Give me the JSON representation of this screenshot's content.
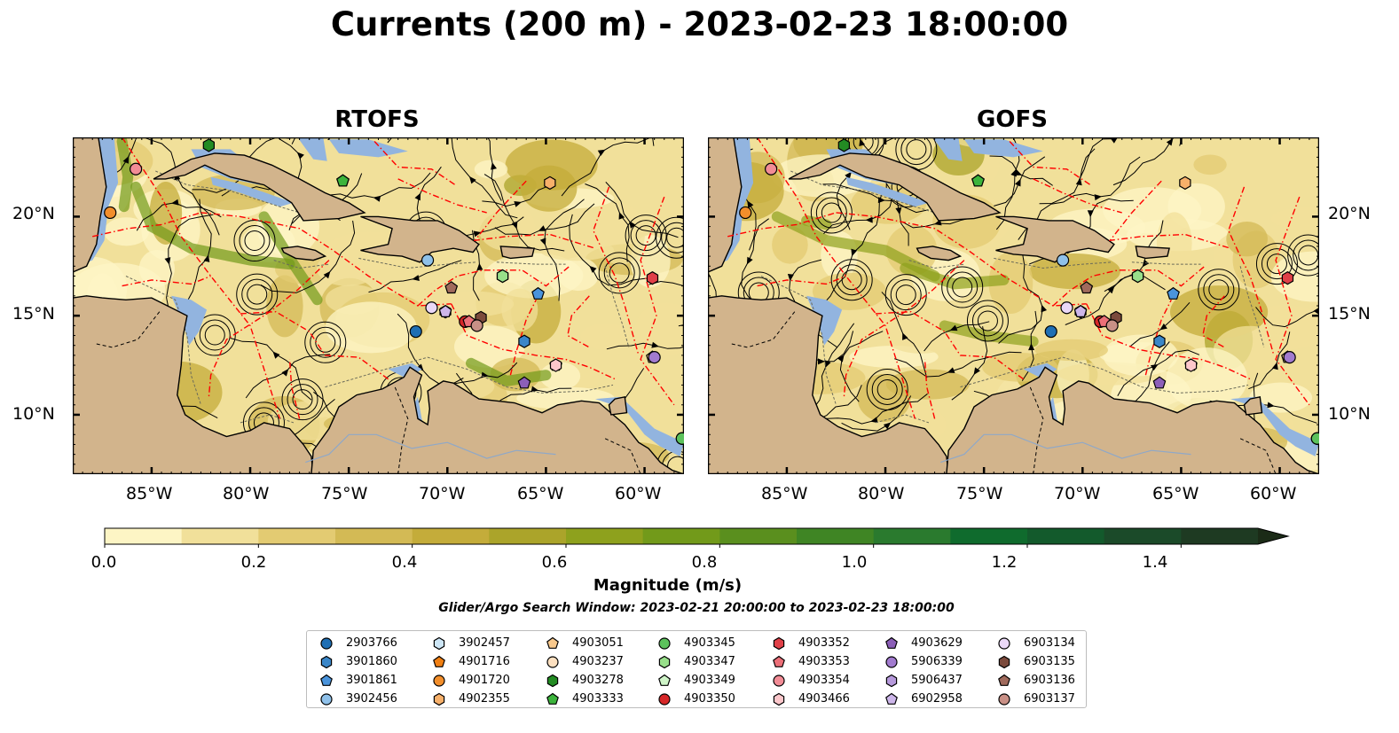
{
  "title": "Currents (200 m) - 2023-02-23 18:00:00",
  "panels": [
    {
      "title": "RTOFS"
    },
    {
      "title": "GOFS"
    }
  ],
  "map": {
    "lon_range": [
      -89,
      -58
    ],
    "lat_range": [
      7,
      24
    ],
    "lon_ticks": [
      "85°W",
      "80°W",
      "75°W",
      "70°W",
      "65°W",
      "60°W"
    ],
    "lat_ticks": [
      "20°N",
      "15°N",
      "10°N"
    ],
    "land_color": "#d2b48c",
    "ocean_shelf_color": "#92b4df",
    "eez_color": "#ff0000",
    "streamline_color": "#000000"
  },
  "colorbar": {
    "title": "Magnitude (m/s)",
    "range": [
      0.0,
      1.5
    ],
    "extend": "max",
    "tick_labels": [
      "0.0",
      "0.2",
      "0.4",
      "0.6",
      "0.8",
      "1.0",
      "1.2",
      "1.4"
    ],
    "colors": [
      "#fdf5c5",
      "#f1e09a",
      "#e3cb72",
      "#d3ba55",
      "#c4ac3a",
      "#aba42a",
      "#8ea11d",
      "#729a1a",
      "#5a8f1e",
      "#3f8524",
      "#2a7a2e",
      "#0f6b2d",
      "#135a2c",
      "#1b4a29",
      "#1e3a22",
      "#1b2b17"
    ]
  },
  "search_window": "Glider/Argo Search Window: 2023-02-21 20:00:00 to 2023-02-23 18:00:00",
  "legend": [
    {
      "id": "2903766",
      "marker": "circle",
      "color": "#1f6fb4"
    },
    {
      "id": "3901860",
      "marker": "hexagon",
      "color": "#3a86c8"
    },
    {
      "id": "3901861",
      "marker": "pentagon",
      "color": "#4a94dc"
    },
    {
      "id": "3902456",
      "marker": "circle",
      "color": "#8fc1ea"
    },
    {
      "id": "3902457",
      "marker": "hexagon",
      "color": "#cde6f6"
    },
    {
      "id": "4901716",
      "marker": "pentagon",
      "color": "#f07f12"
    },
    {
      "id": "4901720",
      "marker": "circle",
      "color": "#f28e2b"
    },
    {
      "id": "4902355",
      "marker": "hexagon",
      "color": "#f7b06a"
    },
    {
      "id": "4903051",
      "marker": "pentagon",
      "color": "#f9c98d"
    },
    {
      "id": "4903237",
      "marker": "circle",
      "color": "#fde0c0"
    },
    {
      "id": "4903278",
      "marker": "hexagon",
      "color": "#238b23"
    },
    {
      "id": "4903333",
      "marker": "pentagon",
      "color": "#3cb43c"
    },
    {
      "id": "4903345",
      "marker": "circle",
      "color": "#5cc25c"
    },
    {
      "id": "4903347",
      "marker": "hexagon",
      "color": "#98df8a"
    },
    {
      "id": "4903349",
      "marker": "pentagon",
      "color": "#cff5c8"
    },
    {
      "id": "4903350",
      "marker": "circle",
      "color": "#d62728"
    },
    {
      "id": "4903352",
      "marker": "hexagon",
      "color": "#e04048"
    },
    {
      "id": "4903353",
      "marker": "pentagon",
      "color": "#ec6f78"
    },
    {
      "id": "4903354",
      "marker": "circle",
      "color": "#f28c96"
    },
    {
      "id": "4903466",
      "marker": "hexagon",
      "color": "#fcc7cb"
    },
    {
      "id": "4903629",
      "marker": "pentagon",
      "color": "#8c5fb8"
    },
    {
      "id": "5906339",
      "marker": "circle",
      "color": "#a27bcf"
    },
    {
      "id": "5906437",
      "marker": "hexagon",
      "color": "#b699db"
    },
    {
      "id": "6902958",
      "marker": "pentagon",
      "color": "#cdb6ea"
    },
    {
      "id": "6903134",
      "marker": "circle",
      "color": "#ead8f7"
    },
    {
      "id": "6903135",
      "marker": "hexagon",
      "color": "#7b4a3c"
    },
    {
      "id": "6903136",
      "marker": "pentagon",
      "color": "#a06a5c"
    },
    {
      "id": "6903137",
      "marker": "circle",
      "color": "#c99086"
    }
  ],
  "floats": {
    "rtofs": [
      {
        "id": "2903766",
        "lon": -71.6,
        "lat": 14.2
      },
      {
        "id": "3901860",
        "lon": -66.1,
        "lat": 13.7
      },
      {
        "id": "3901861",
        "lon": -65.4,
        "lat": 16.1
      },
      {
        "id": "3902456",
        "lon": -71.0,
        "lat": 17.8
      },
      {
        "id": "3902457",
        "lon": -67.2,
        "lat": 17.0
      },
      {
        "id": "4901716",
        "lon": -75.3,
        "lat": 21.8
      },
      {
        "id": "4901720",
        "lon": -87.1,
        "lat": 20.2
      },
      {
        "id": "4902355",
        "lon": -64.8,
        "lat": 21.7
      },
      {
        "id": "4903051",
        "lon": -59.6,
        "lat": 12.9
      },
      {
        "id": "4903237",
        "lon": -58.1,
        "lat": 8.8
      },
      {
        "id": "4903278",
        "lon": -82.1,
        "lat": 23.6
      },
      {
        "id": "4903333",
        "lon": -75.3,
        "lat": 21.8
      },
      {
        "id": "4903345",
        "lon": -58.1,
        "lat": 8.8
      },
      {
        "id": "4903347",
        "lon": -67.2,
        "lat": 17.0
      },
      {
        "id": "4903349",
        "lon": -64.5,
        "lat": 12.5
      },
      {
        "id": "4903350",
        "lon": -69.1,
        "lat": 14.7
      },
      {
        "id": "4903352",
        "lon": -59.6,
        "lat": 16.9
      },
      {
        "id": "4903353",
        "lon": -68.9,
        "lat": 14.7
      },
      {
        "id": "4903354",
        "lon": -85.8,
        "lat": 22.4
      },
      {
        "id": "4903466",
        "lon": -64.5,
        "lat": 12.5
      },
      {
        "id": "4903629",
        "lon": -66.1,
        "lat": 11.6
      },
      {
        "id": "5906339",
        "lon": -59.5,
        "lat": 12.9
      },
      {
        "id": "5906437",
        "lon": -70.1,
        "lat": 15.2
      },
      {
        "id": "6902958",
        "lon": -70.1,
        "lat": 15.2
      },
      {
        "id": "6903134",
        "lon": -70.8,
        "lat": 15.4
      },
      {
        "id": "6903135",
        "lon": -68.3,
        "lat": 14.9
      },
      {
        "id": "6903136",
        "lon": -69.8,
        "lat": 16.4
      },
      {
        "id": "6903137",
        "lon": -68.5,
        "lat": 14.5
      }
    ],
    "gofs": [
      {
        "id": "2903766",
        "lon": -71.6,
        "lat": 14.2
      },
      {
        "id": "3901860",
        "lon": -66.1,
        "lat": 13.7
      },
      {
        "id": "3901861",
        "lon": -65.4,
        "lat": 16.1
      },
      {
        "id": "3902456",
        "lon": -71.0,
        "lat": 17.8
      },
      {
        "id": "3902457",
        "lon": -67.2,
        "lat": 17.0
      },
      {
        "id": "4901716",
        "lon": -75.3,
        "lat": 21.8
      },
      {
        "id": "4901720",
        "lon": -87.1,
        "lat": 20.2
      },
      {
        "id": "4902355",
        "lon": -64.8,
        "lat": 21.7
      },
      {
        "id": "4903051",
        "lon": -59.6,
        "lat": 12.9
      },
      {
        "id": "4903237",
        "lon": -58.1,
        "lat": 8.8
      },
      {
        "id": "4903278",
        "lon": -82.1,
        "lat": 23.6
      },
      {
        "id": "4903333",
        "lon": -75.3,
        "lat": 21.8
      },
      {
        "id": "4903345",
        "lon": -58.1,
        "lat": 8.8
      },
      {
        "id": "4903347",
        "lon": -67.2,
        "lat": 17.0
      },
      {
        "id": "4903349",
        "lon": -64.5,
        "lat": 12.5
      },
      {
        "id": "4903350",
        "lon": -69.1,
        "lat": 14.7
      },
      {
        "id": "4903352",
        "lon": -59.6,
        "lat": 16.9
      },
      {
        "id": "4903353",
        "lon": -68.9,
        "lat": 14.7
      },
      {
        "id": "4903354",
        "lon": -85.8,
        "lat": 22.4
      },
      {
        "id": "4903466",
        "lon": -64.5,
        "lat": 12.5
      },
      {
        "id": "4903629",
        "lon": -66.1,
        "lat": 11.6
      },
      {
        "id": "5906339",
        "lon": -59.5,
        "lat": 12.9
      },
      {
        "id": "5906437",
        "lon": -70.1,
        "lat": 15.2
      },
      {
        "id": "6902958",
        "lon": -70.1,
        "lat": 15.2
      },
      {
        "id": "6903134",
        "lon": -70.8,
        "lat": 15.4
      },
      {
        "id": "6903135",
        "lon": -68.3,
        "lat": 14.9
      },
      {
        "id": "6903136",
        "lon": -69.8,
        "lat": 16.4
      },
      {
        "id": "6903137",
        "lon": -68.5,
        "lat": 14.5
      }
    ]
  }
}
